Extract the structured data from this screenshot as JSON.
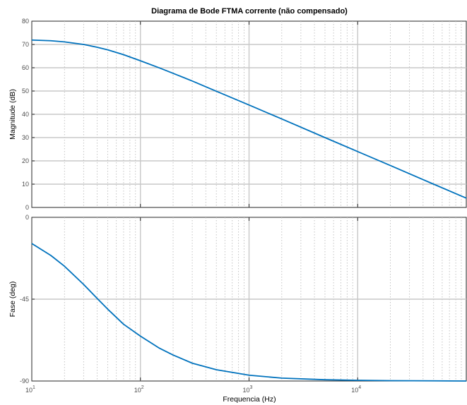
{
  "chart_data": [
    {
      "type": "line",
      "title": "Diagrama de Bode FTMA corrente (não compensado)",
      "ylabel": "Magnitude (dB)",
      "xscale": "log",
      "xlim": [
        10,
        100000
      ],
      "ylim": [
        0,
        80
      ],
      "x_ticks": [
        {
          "base": "10",
          "exp": "1"
        },
        {
          "base": "10",
          "exp": "2"
        },
        {
          "base": "10",
          "exp": "3"
        },
        {
          "base": "10",
          "exp": "4"
        }
      ],
      "y_ticks": [
        "0",
        "10",
        "20",
        "30",
        "40",
        "50",
        "60",
        "70",
        "80"
      ],
      "grid": true,
      "color": "#0072bd",
      "series": [
        {
          "x": [
            10,
            15,
            20,
            30,
            40,
            50,
            70,
            100,
            150,
            200,
            300,
            500,
            1000,
            2000,
            5000,
            10000,
            20000,
            50000,
            100000
          ],
          "values": [
            71.9,
            71.6,
            71.1,
            70.0,
            68.8,
            67.7,
            65.6,
            63.0,
            59.9,
            57.6,
            54.3,
            49.9,
            44.0,
            38.0,
            30.0,
            24.0,
            18.0,
            10.0,
            4.0
          ]
        }
      ]
    },
    {
      "type": "line",
      "title": "",
      "xlabel": "Frequencia  (Hz)",
      "ylabel": "Fase (deg)",
      "xscale": "log",
      "xlim": [
        10,
        100000
      ],
      "ylim": [
        -90,
        0
      ],
      "x_ticks": [
        {
          "base": "10",
          "exp": "1"
        },
        {
          "base": "10",
          "exp": "2"
        },
        {
          "base": "10",
          "exp": "3"
        },
        {
          "base": "10",
          "exp": "4"
        }
      ],
      "y_ticks": [
        "-90",
        "-45",
        "0"
      ],
      "grid": true,
      "color": "#0072bd",
      "series": [
        {
          "x": [
            10,
            15,
            20,
            30,
            40,
            50,
            70,
            100,
            150,
            200,
            300,
            500,
            1000,
            2000,
            5000,
            10000,
            20000,
            50000,
            100000
          ],
          "values": [
            -14.4,
            -21.0,
            -26.9,
            -36.9,
            -44.6,
            -50.5,
            -58.8,
            -65.3,
            -72.0,
            -75.7,
            -80.2,
            -83.8,
            -86.8,
            -88.4,
            -89.3,
            -89.6,
            -89.8,
            -89.9,
            -90.0
          ]
        }
      ]
    }
  ]
}
